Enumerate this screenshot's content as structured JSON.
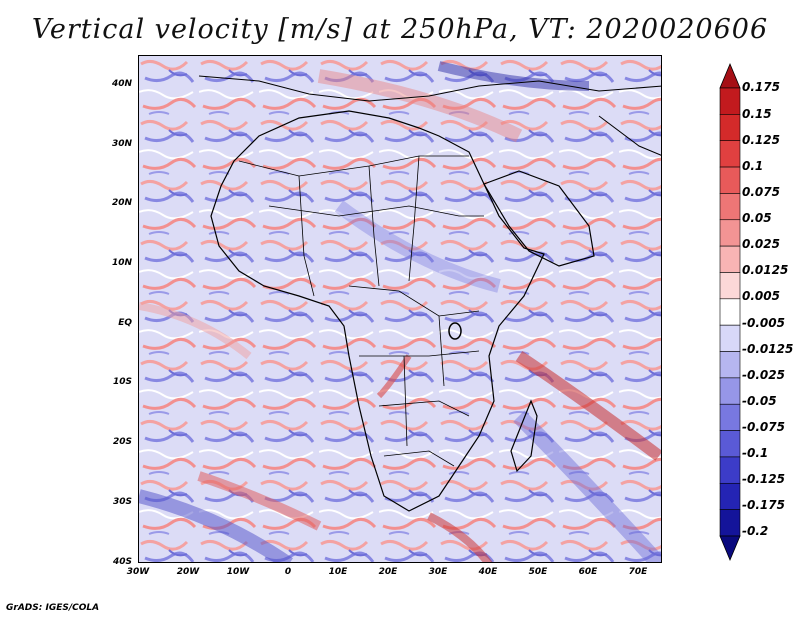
{
  "title": "Vertical velocity [m/s] at 250hPa, VT: 2020020606",
  "credit": "GrADS: IGES/COLA",
  "lat_labels": [
    "40N",
    "30N",
    "20N",
    "10N",
    "EQ",
    "10S",
    "20S",
    "30S",
    "40S"
  ],
  "lon_labels": [
    "30W",
    "20W",
    "10W",
    "0",
    "10E",
    "20E",
    "30E",
    "40E",
    "50E",
    "60E",
    "70E"
  ],
  "colorbar": {
    "labels": [
      "0.175",
      "0.15",
      "0.125",
      "0.1",
      "0.075",
      "0.05",
      "0.025",
      "0.0125",
      "0.005",
      "-0.005",
      "-0.0125",
      "-0.025",
      "-0.05",
      "-0.075",
      "-0.1",
      "-0.125",
      "-0.175",
      "-0.2"
    ],
    "colors": [
      "#a50f15",
      "#c21a1e",
      "#d42a2a",
      "#e04040",
      "#e85a5a",
      "#ee7676",
      "#f39494",
      "#f8b4b4",
      "#fcd8d8",
      "#ffffff",
      "#d8d8f8",
      "#b6b6f0",
      "#9696e8",
      "#7878e0",
      "#5a5ad6",
      "#3c3cc8",
      "#2424b4",
      "#14149a",
      "#0a0a7e"
    ]
  }
}
